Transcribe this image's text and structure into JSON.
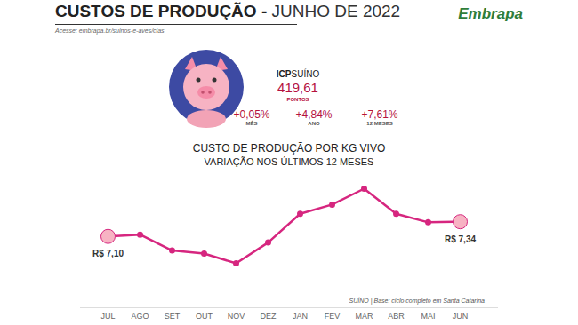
{
  "header": {
    "title": "CUSTOS DE PRODUÇÃO -",
    "date": "JUNHO DE 2022",
    "link": "Acesse: embrapa.br/suinos-e-aves/cias",
    "logo": "Embrapa"
  },
  "index_panel": {
    "name_bold": "ICP",
    "name": "SUÍNO",
    "value": "419,61",
    "unit": "PONTOS",
    "changes": [
      {
        "value": "+0,05%",
        "label": "MÊS"
      },
      {
        "value": "+4,84%",
        "label": "ANO"
      },
      {
        "value": "+7,61%",
        "label": "12 MESES"
      }
    ]
  },
  "footer": "SUÍNO | Base: ciclo completo em Santa Catarina",
  "chart_data": {
    "type": "line",
    "title": "CUSTO DE PRODUÇÃO POR KG VIVO",
    "subtitle": "VARIAÇÃO NOS ÚLTIMOS 12 MESES",
    "categories": [
      "JUL",
      "AGO",
      "SET",
      "OUT",
      "NOV",
      "DEZ",
      "JAN",
      "FEV",
      "MAR",
      "ABR",
      "MAI",
      "JUN"
    ],
    "values": [
      7.1,
      7.13,
      6.87,
      6.82,
      6.66,
      7.0,
      7.47,
      7.62,
      7.88,
      7.47,
      7.33,
      7.34
    ],
    "value_labels": [
      "R$ 7,10",
      null,
      null,
      null,
      null,
      null,
      null,
      null,
      null,
      null,
      null,
      "R$ 7,34"
    ],
    "color": "#d6267f",
    "marker": "circle",
    "data_labels": true,
    "tick_labels": "x",
    "grid": false
  }
}
